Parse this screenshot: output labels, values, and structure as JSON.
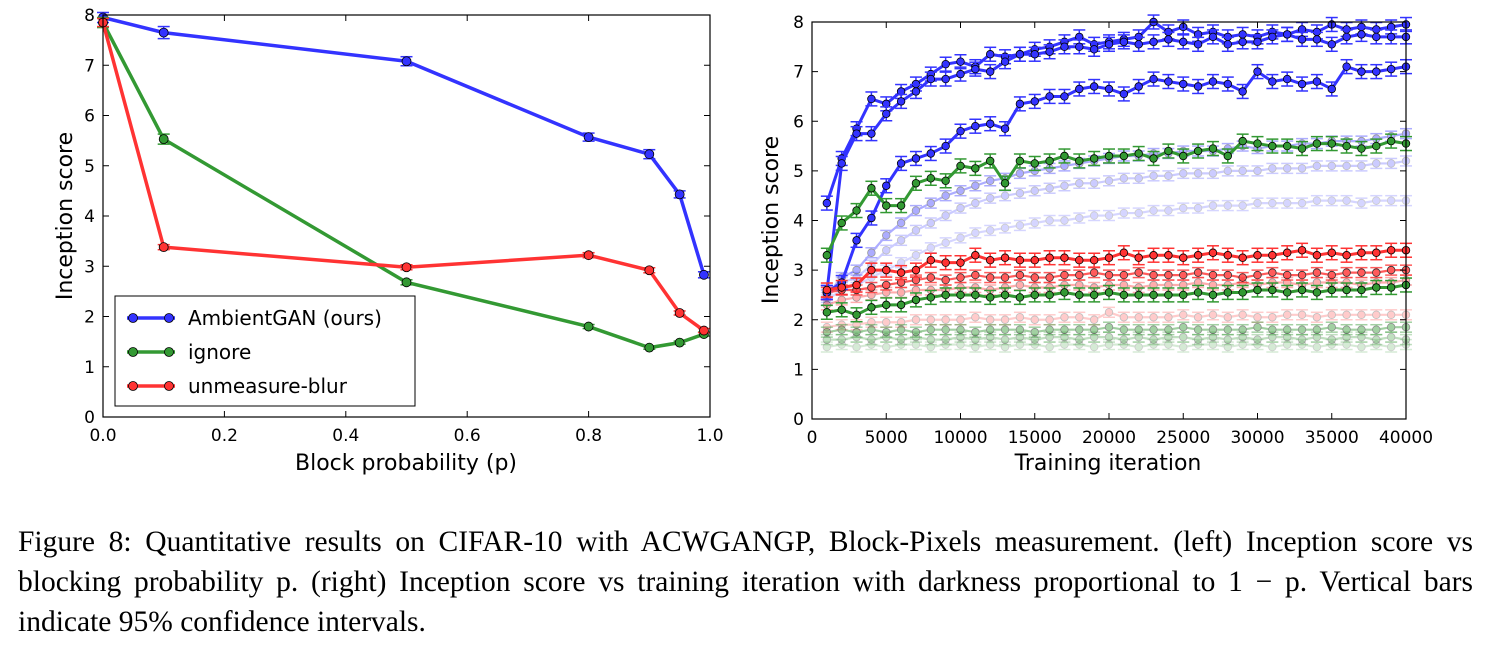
{
  "figure": {
    "caption_lines": [
      "Figure 8: Quantitative results on CIFAR-10 with ACWGANGP, Block-Pixels measurement. (left)",
      "Inception score vs blocking probability p. (right) Inception score vs training iteration with darkness",
      "proportional to 1 − p. Vertical bars indicate 95% confidence intervals."
    ]
  },
  "colors": {
    "blue": "#0000ff",
    "green": "#008000",
    "red": "#ff0000"
  },
  "chart_data": [
    {
      "type": "line",
      "xlabel": "Block probability (p)",
      "ylabel": "Inception score",
      "xlim": [
        0.0,
        1.0
      ],
      "ylim": [
        0,
        8
      ],
      "xticks": [
        "0.0",
        "0.2",
        "0.4",
        "0.6",
        "0.8",
        "1.0"
      ],
      "yticks": [
        "0",
        "1",
        "2",
        "3",
        "4",
        "5",
        "6",
        "7",
        "8"
      ],
      "legend_position": "lower-left",
      "series": [
        {
          "name": "AmbientGAN (ours)",
          "color": "blue",
          "x": [
            0.0,
            0.1,
            0.5,
            0.8,
            0.9,
            0.95,
            0.99
          ],
          "y": [
            7.95,
            7.65,
            7.08,
            5.57,
            5.23,
            4.43,
            2.83
          ],
          "err": [
            0.1,
            0.12,
            0.09,
            0.08,
            0.09,
            0.07,
            0.06
          ]
        },
        {
          "name": "ignore",
          "color": "green",
          "x": [
            0.0,
            0.1,
            0.5,
            0.8,
            0.9,
            0.95,
            0.99
          ],
          "y": [
            7.85,
            5.53,
            2.68,
            1.8,
            1.38,
            1.48,
            1.65
          ],
          "err": [
            0.1,
            0.1,
            0.05,
            0.04,
            0.03,
            0.03,
            0.04
          ]
        },
        {
          "name": "unmeasure-blur",
          "color": "red",
          "x": [
            0.0,
            0.1,
            0.5,
            0.8,
            0.9,
            0.95,
            0.99
          ],
          "y": [
            7.85,
            3.38,
            2.98,
            3.22,
            2.92,
            2.07,
            1.72
          ],
          "err": [
            0.08,
            0.05,
            0.05,
            0.05,
            0.05,
            0.04,
            0.04
          ]
        }
      ]
    },
    {
      "type": "line",
      "xlabel": "Training iteration",
      "ylabel": "Inception score",
      "xlim": [
        0,
        40000
      ],
      "ylim": [
        0,
        8
      ],
      "xticks": [
        "0",
        "5000",
        "10000",
        "15000",
        "20000",
        "25000",
        "30000",
        "35000",
        "40000"
      ],
      "yticks": [
        "0",
        "1",
        "2",
        "3",
        "4",
        "5",
        "6",
        "7",
        "8"
      ],
      "iterations": [
        1000,
        2000,
        3000,
        4000,
        5000,
        6000,
        7000,
        8000,
        9000,
        10000,
        11000,
        12000,
        13000,
        14000,
        15000,
        16000,
        17000,
        18000,
        19000,
        20000,
        21000,
        22000,
        23000,
        24000,
        25000,
        26000,
        27000,
        28000,
        29000,
        30000,
        31000,
        32000,
        33000,
        34000,
        35000,
        36000,
        37000,
        38000,
        39000,
        40000
      ],
      "series": [
        {
          "color": "blue",
          "p": 0.0,
          "opacity": 1.0,
          "y": [
            4.35,
            5.25,
            5.85,
            6.45,
            6.35,
            6.6,
            6.75,
            6.95,
            7.15,
            7.2,
            7.1,
            7.35,
            7.3,
            7.35,
            7.45,
            7.5,
            7.6,
            7.7,
            7.55,
            7.6,
            7.65,
            7.7,
            8.0,
            7.8,
            7.9,
            7.75,
            7.8,
            7.7,
            7.75,
            7.7,
            7.8,
            7.75,
            7.85,
            7.8,
            7.95,
            7.85,
            7.9,
            7.85,
            7.9,
            7.95
          ]
        },
        {
          "color": "blue",
          "p": 0.1,
          "opacity": 1.0,
          "y": [
            2.55,
            5.15,
            5.75,
            5.75,
            6.15,
            6.4,
            6.6,
            6.85,
            6.85,
            6.95,
            7.05,
            7.0,
            7.2,
            7.35,
            7.35,
            7.4,
            7.5,
            7.5,
            7.45,
            7.55,
            7.6,
            7.55,
            7.6,
            7.65,
            7.6,
            7.55,
            7.7,
            7.55,
            7.6,
            7.6,
            7.7,
            7.75,
            7.65,
            7.65,
            7.55,
            7.7,
            7.75,
            7.7,
            7.7,
            7.7
          ]
        },
        {
          "color": "blue",
          "p": 0.5,
          "opacity": 1.0,
          "y": [
            2.55,
            2.75,
            3.6,
            4.05,
            4.7,
            5.15,
            5.25,
            5.35,
            5.5,
            5.8,
            5.9,
            5.95,
            5.85,
            6.35,
            6.4,
            6.5,
            6.5,
            6.65,
            6.7,
            6.65,
            6.55,
            6.7,
            6.85,
            6.8,
            6.75,
            6.7,
            6.8,
            6.75,
            6.6,
            7.0,
            6.8,
            6.85,
            6.75,
            6.8,
            6.65,
            7.1,
            7.0,
            7.0,
            7.05,
            7.1
          ]
        },
        {
          "color": "blue",
          "p": 0.8,
          "opacity": 0.4,
          "y": [
            2.5,
            2.85,
            3.0,
            3.35,
            3.7,
            3.95,
            4.2,
            4.35,
            4.5,
            4.6,
            4.7,
            4.8,
            4.85,
            4.95,
            5.0,
            5.05,
            5.1,
            5.15,
            5.2,
            5.25,
            5.3,
            5.3,
            5.35,
            5.35,
            5.4,
            5.4,
            5.4,
            5.45,
            5.5,
            5.45,
            5.5,
            5.5,
            5.55,
            5.55,
            5.6,
            5.6,
            5.6,
            5.65,
            5.7,
            5.75
          ]
        },
        {
          "color": "blue",
          "p": 0.9,
          "opacity": 0.25,
          "y": [
            2.45,
            2.75,
            2.85,
            3.1,
            3.4,
            3.6,
            3.8,
            3.95,
            4.1,
            4.25,
            4.35,
            4.45,
            4.5,
            4.55,
            4.6,
            4.65,
            4.7,
            4.75,
            4.75,
            4.8,
            4.85,
            4.85,
            4.9,
            4.9,
            4.95,
            4.95,
            4.95,
            5.0,
            5.0,
            5.0,
            5.05,
            5.05,
            5.05,
            5.1,
            5.1,
            5.1,
            5.1,
            5.15,
            5.15,
            5.2
          ]
        },
        {
          "color": "blue",
          "p": 0.95,
          "opacity": 0.2,
          "y": [
            2.4,
            2.6,
            2.7,
            2.85,
            3.0,
            3.15,
            3.3,
            3.45,
            3.55,
            3.65,
            3.75,
            3.8,
            3.85,
            3.9,
            3.95,
            4.0,
            4.0,
            4.05,
            4.1,
            4.1,
            4.15,
            4.15,
            4.2,
            4.2,
            4.25,
            4.25,
            4.3,
            4.3,
            4.3,
            4.35,
            4.35,
            4.35,
            4.35,
            4.4,
            4.4,
            4.4,
            4.35,
            4.4,
            4.4,
            4.4
          ]
        },
        {
          "color": "green",
          "p": 0.0,
          "opacity": 1.0,
          "y": [
            3.3,
            3.95,
            4.2,
            4.65,
            4.3,
            4.3,
            4.75,
            4.85,
            4.8,
            5.1,
            5.05,
            5.2,
            4.75,
            5.2,
            5.15,
            5.2,
            5.3,
            5.2,
            5.25,
            5.3,
            5.3,
            5.35,
            5.25,
            5.4,
            5.3,
            5.4,
            5.45,
            5.3,
            5.6,
            5.55,
            5.5,
            5.5,
            5.45,
            5.55,
            5.55,
            5.5,
            5.45,
            5.5,
            5.6,
            5.55
          ]
        },
        {
          "color": "green",
          "p": 0.1,
          "opacity": 1.0,
          "y": [
            2.15,
            2.2,
            2.1,
            2.25,
            2.3,
            2.3,
            2.4,
            2.45,
            2.5,
            2.5,
            2.5,
            2.45,
            2.5,
            2.45,
            2.5,
            2.5,
            2.55,
            2.5,
            2.5,
            2.55,
            2.5,
            2.5,
            2.5,
            2.5,
            2.5,
            2.55,
            2.5,
            2.55,
            2.55,
            2.6,
            2.6,
            2.55,
            2.6,
            2.55,
            2.6,
            2.6,
            2.6,
            2.65,
            2.65,
            2.7
          ]
        },
        {
          "color": "green",
          "p": 0.5,
          "opacity": 0.45,
          "y": [
            1.75,
            1.8,
            1.75,
            1.8,
            1.75,
            1.8,
            1.75,
            1.8,
            1.8,
            1.8,
            1.75,
            1.8,
            1.8,
            1.8,
            1.75,
            1.8,
            1.8,
            1.8,
            1.8,
            1.85,
            1.8,
            1.8,
            1.8,
            1.8,
            1.85,
            1.8,
            1.8,
            1.8,
            1.8,
            1.85,
            1.8,
            1.8,
            1.8,
            1.8,
            1.85,
            1.8,
            1.8,
            1.8,
            1.85,
            1.85
          ]
        },
        {
          "color": "green",
          "p": 0.8,
          "opacity": 0.3,
          "y": [
            1.6,
            1.6,
            1.65,
            1.6,
            1.65,
            1.6,
            1.65,
            1.6,
            1.6,
            1.65,
            1.6,
            1.65,
            1.6,
            1.65,
            1.6,
            1.65,
            1.65,
            1.6,
            1.65,
            1.65,
            1.6,
            1.65,
            1.6,
            1.65,
            1.65,
            1.6,
            1.65,
            1.6,
            1.65,
            1.6,
            1.65,
            1.65,
            1.6,
            1.65,
            1.6,
            1.65,
            1.65,
            1.6,
            1.65,
            1.6
          ]
        },
        {
          "color": "green",
          "p": 0.9,
          "opacity": 0.2,
          "y": [
            1.45,
            1.5,
            1.45,
            1.5,
            1.45,
            1.5,
            1.5,
            1.45,
            1.5,
            1.5,
            1.45,
            1.5,
            1.45,
            1.5,
            1.5,
            1.45,
            1.5,
            1.5,
            1.45,
            1.5,
            1.5,
            1.45,
            1.5,
            1.5,
            1.45,
            1.5,
            1.5,
            1.45,
            1.5,
            1.5,
            1.45,
            1.5,
            1.5,
            1.45,
            1.5,
            1.5,
            1.45,
            1.5,
            1.45,
            1.5
          ]
        },
        {
          "color": "red",
          "p": 0.0,
          "opacity": 1.0,
          "y": [
            2.6,
            2.65,
            2.7,
            3.0,
            3.0,
            2.95,
            3.0,
            3.2,
            3.15,
            3.15,
            3.3,
            3.2,
            3.25,
            3.2,
            3.2,
            3.25,
            3.25,
            3.2,
            3.2,
            3.25,
            3.35,
            3.25,
            3.3,
            3.3,
            3.25,
            3.3,
            3.35,
            3.3,
            3.25,
            3.3,
            3.3,
            3.35,
            3.4,
            3.3,
            3.35,
            3.3,
            3.35,
            3.35,
            3.4,
            3.4
          ]
        },
        {
          "color": "red",
          "p": 0.1,
          "opacity": 0.8,
          "y": [
            2.55,
            2.6,
            2.6,
            2.65,
            2.7,
            2.75,
            2.8,
            2.85,
            2.8,
            2.85,
            2.9,
            2.85,
            2.85,
            2.9,
            2.85,
            2.85,
            2.9,
            2.9,
            2.95,
            2.9,
            2.9,
            2.95,
            2.9,
            2.9,
            2.9,
            2.95,
            2.9,
            2.9,
            2.85,
            2.9,
            2.95,
            2.9,
            2.9,
            2.95,
            2.9,
            2.95,
            2.95,
            2.95,
            3.0,
            3.0
          ]
        },
        {
          "color": "red",
          "p": 0.5,
          "opacity": 0.4,
          "y": [
            2.3,
            2.4,
            2.45,
            2.5,
            2.55,
            2.55,
            2.6,
            2.6,
            2.6,
            2.65,
            2.65,
            2.6,
            2.65,
            2.7,
            2.65,
            2.65,
            2.7,
            2.7,
            2.65,
            2.7,
            2.7,
            2.65,
            2.7,
            2.7,
            2.7,
            2.75,
            2.7,
            2.7,
            2.75,
            2.7,
            2.75,
            2.75,
            2.7,
            2.75,
            2.75,
            2.75,
            2.7,
            2.75,
            2.75,
            2.8
          ]
        },
        {
          "color": "red",
          "p": 0.8,
          "opacity": 0.25,
          "y": [
            1.85,
            1.9,
            1.9,
            1.95,
            1.95,
            1.95,
            2.0,
            2.0,
            2.0,
            2.0,
            2.05,
            2.0,
            2.0,
            2.05,
            2.0,
            2.0,
            2.05,
            2.05,
            2.0,
            2.15,
            2.05,
            2.05,
            2.05,
            2.05,
            2.1,
            2.05,
            2.1,
            2.05,
            2.1,
            2.05,
            2.05,
            2.1,
            2.1,
            2.05,
            2.1,
            2.1,
            2.1,
            2.1,
            2.1,
            2.1
          ]
        }
      ]
    }
  ]
}
